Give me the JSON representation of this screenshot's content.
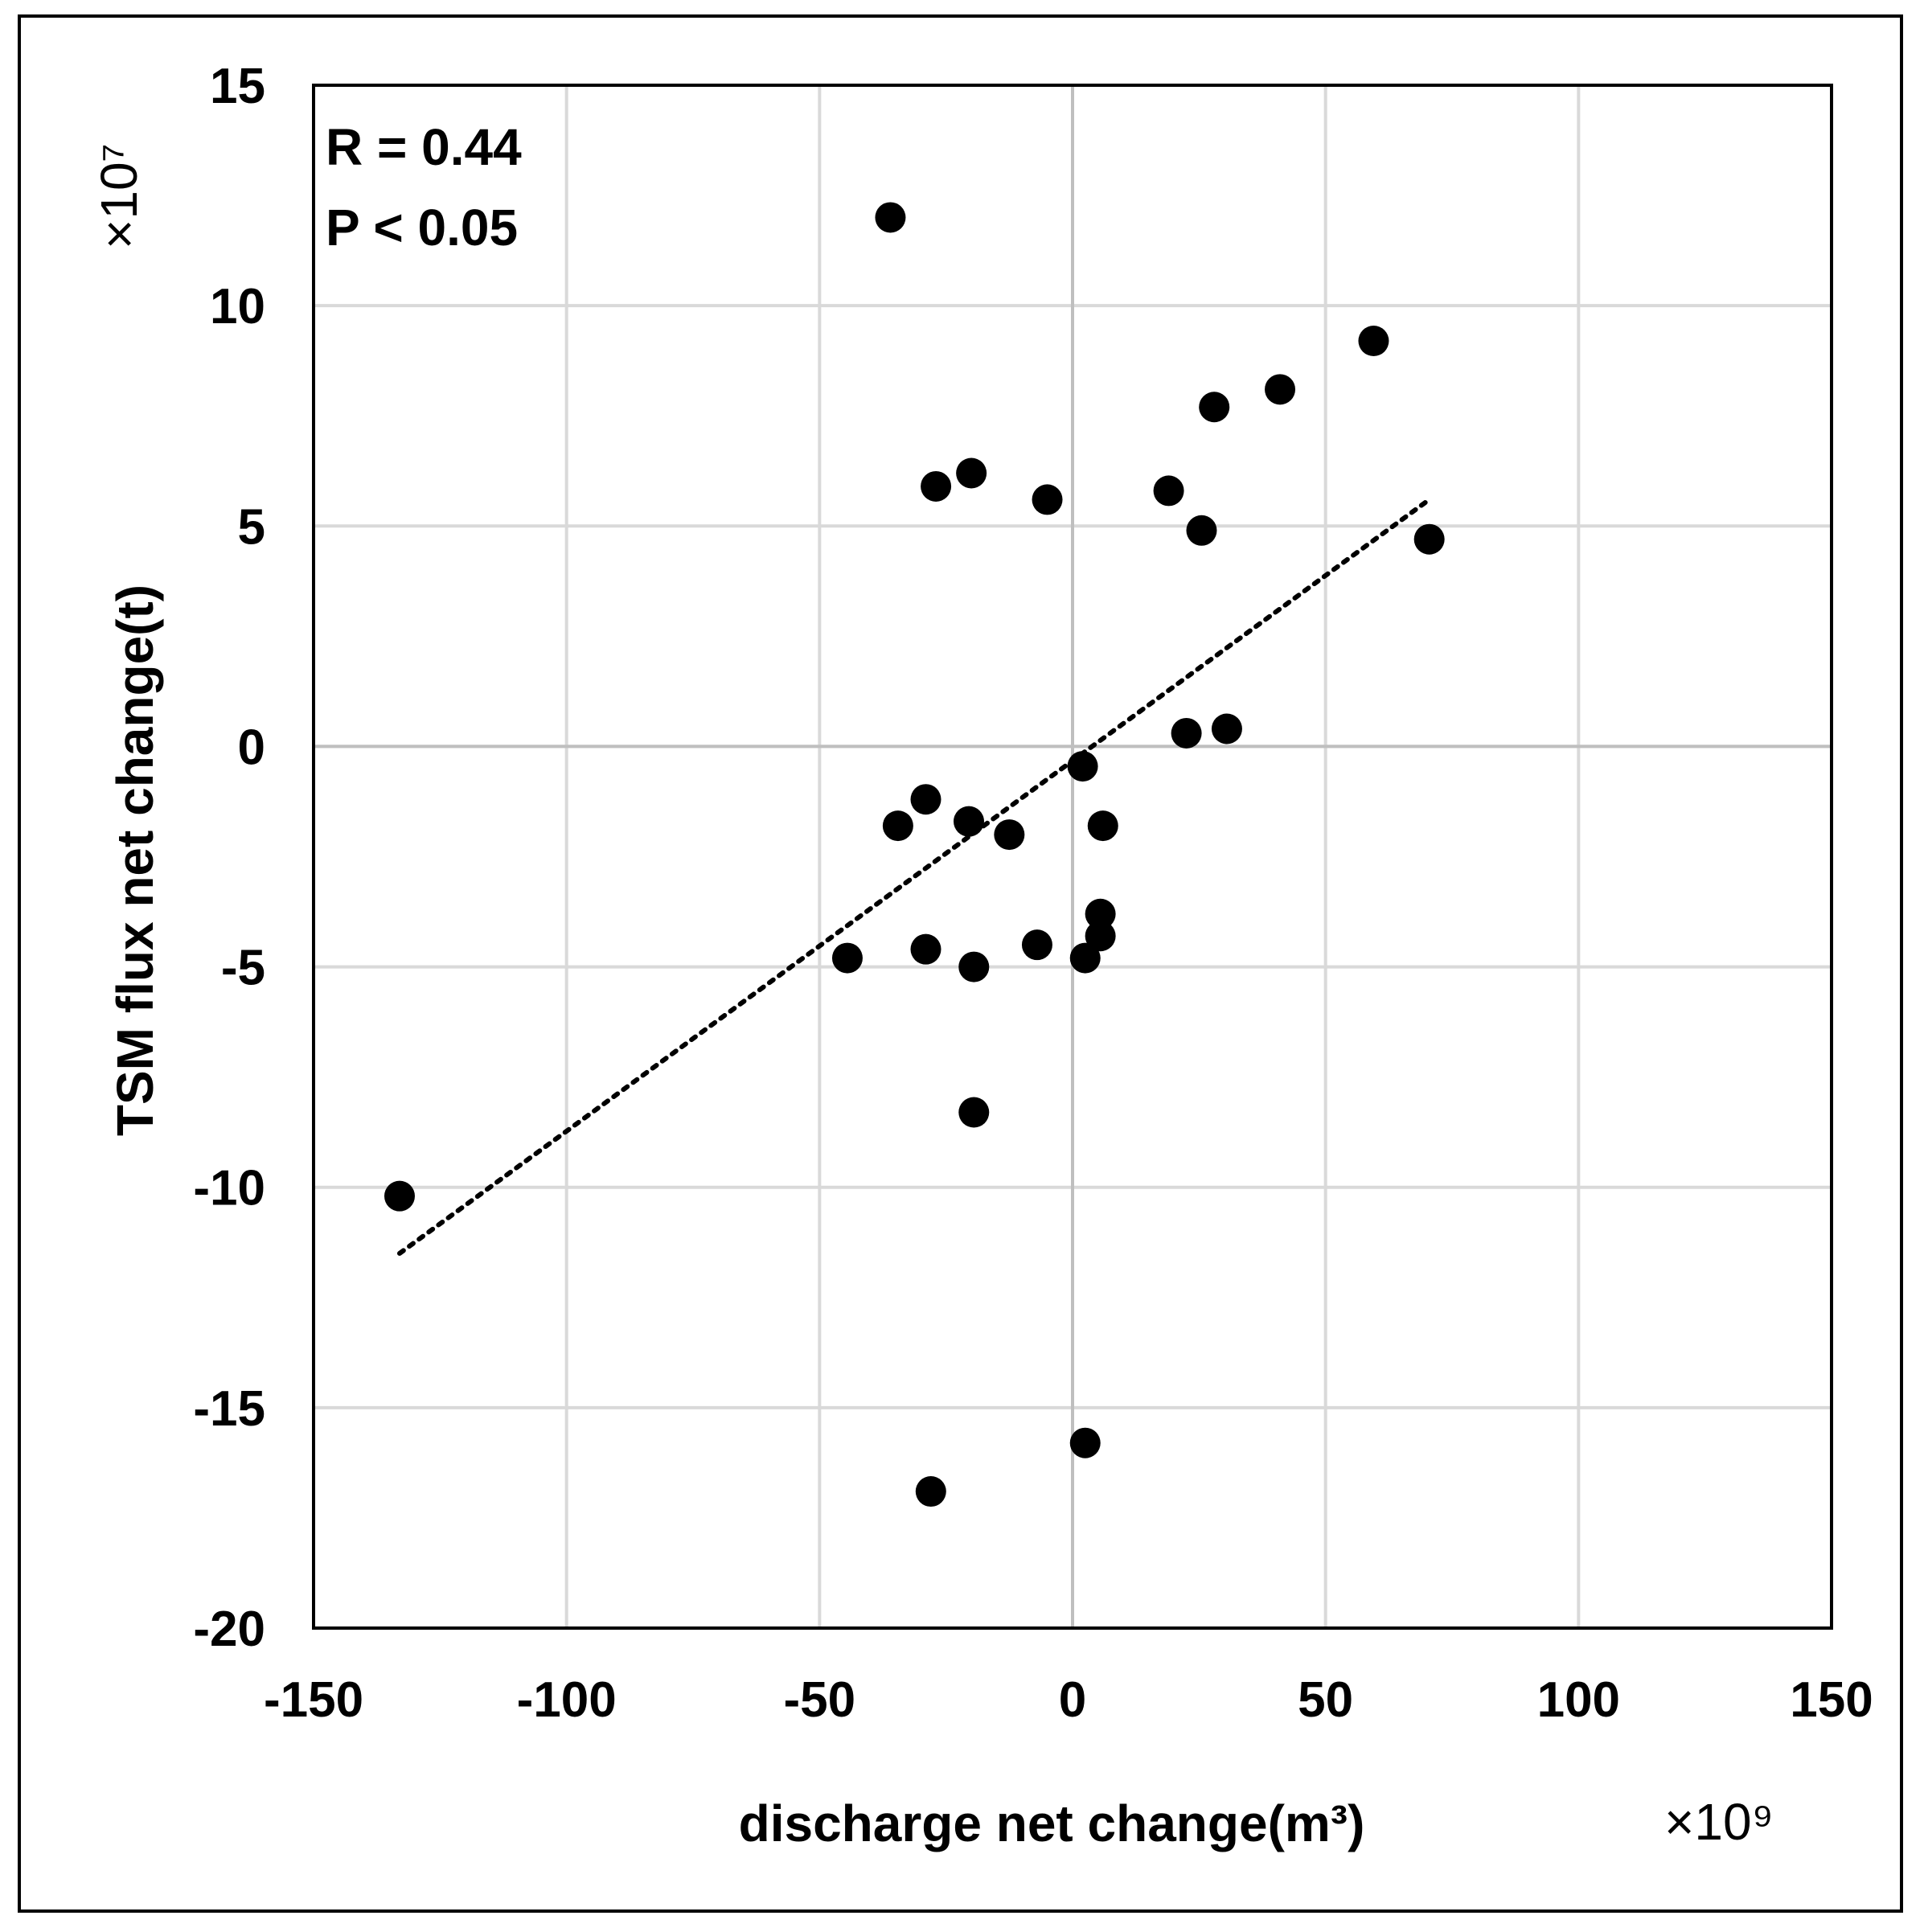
{
  "chart_data": {
    "type": "scatter",
    "xlabel": "discharge net change(m³)",
    "ylabel": "TSM flux net change(t)",
    "x_multiplier": "×10⁹",
    "y_multiplier": "×10⁷",
    "xlim": [
      -150,
      150
    ],
    "ylim": [
      -20,
      15
    ],
    "xticks": [
      -150,
      -100,
      -50,
      0,
      50,
      100,
      150
    ],
    "yticks": [
      -20,
      -15,
      -10,
      -5,
      0,
      5,
      10,
      15
    ],
    "grid": true,
    "annotations": {
      "r": "R = 0.44",
      "p": "P < 0.05"
    },
    "colors": {
      "point": "#000000",
      "grid": "#d9d9d9",
      "axis": "#bfbfbf"
    },
    "points": [
      {
        "x": -36,
        "y": 12.0
      },
      {
        "x": 59.5,
        "y": 9.2
      },
      {
        "x": 41,
        "y": 8.1
      },
      {
        "x": 28,
        "y": 7.7
      },
      {
        "x": -20,
        "y": 6.2
      },
      {
        "x": -27,
        "y": 5.9
      },
      {
        "x": 19,
        "y": 5.8
      },
      {
        "x": -5,
        "y": 5.6
      },
      {
        "x": 25.5,
        "y": 4.9
      },
      {
        "x": 70.5,
        "y": 4.7
      },
      {
        "x": 22.5,
        "y": 0.3
      },
      {
        "x": 30.5,
        "y": 0.4
      },
      {
        "x": 2,
        "y": -0.45
      },
      {
        "x": -29,
        "y": -1.2
      },
      {
        "x": -34.5,
        "y": -1.8
      },
      {
        "x": -20.5,
        "y": -1.7
      },
      {
        "x": -12.5,
        "y": -2.0
      },
      {
        "x": 6,
        "y": -1.8
      },
      {
        "x": 5.5,
        "y": -3.8
      },
      {
        "x": 5.5,
        "y": -4.3
      },
      {
        "x": -7,
        "y": -4.5
      },
      {
        "x": -29,
        "y": -4.6
      },
      {
        "x": -44.5,
        "y": -4.8
      },
      {
        "x": 2.5,
        "y": -4.8
      },
      {
        "x": -19.5,
        "y": -5.0
      },
      {
        "x": -19.5,
        "y": -8.3
      },
      {
        "x": -133,
        "y": -10.2
      },
      {
        "x": 2.5,
        "y": -15.8
      },
      {
        "x": -28,
        "y": -16.9
      }
    ],
    "trendline": {
      "style": "dotted",
      "x_start": -133,
      "x_end": 70.5,
      "y_start": -11.5,
      "y_end": 5.6
    }
  }
}
